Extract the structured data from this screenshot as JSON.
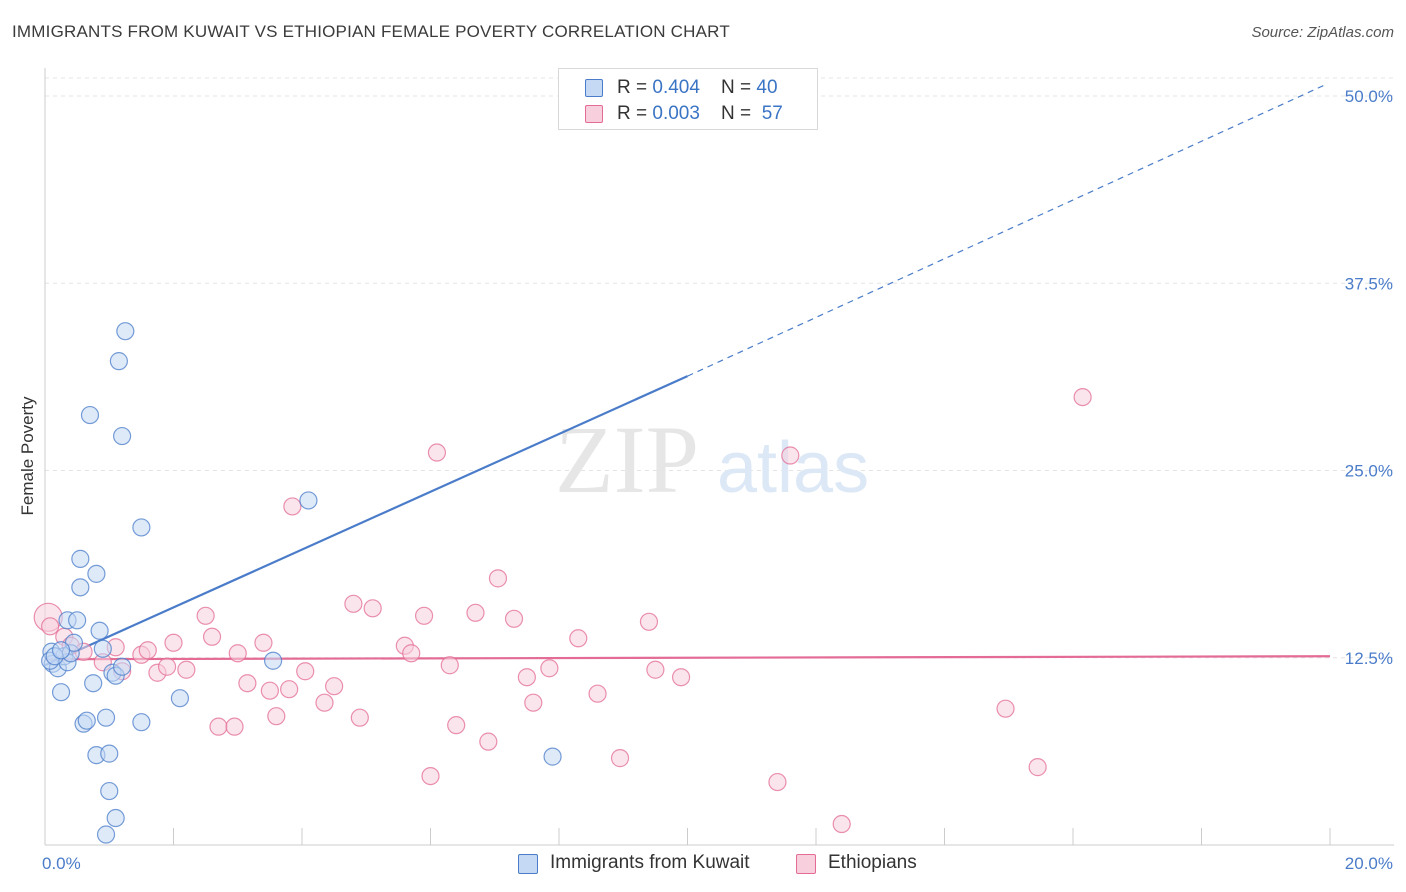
{
  "header": {
    "title": "IMMIGRANTS FROM KUWAIT VS ETHIOPIAN FEMALE POVERTY CORRELATION CHART",
    "source": "Source: ZipAtlas.com"
  },
  "watermark": {
    "zip": "ZIP",
    "atlas": "atlas"
  },
  "legend": {
    "rows": [
      {
        "r_label": "R = ",
        "r_value": "0.404",
        "n_label": "N = ",
        "n_value": "40"
      },
      {
        "r_label": "R = ",
        "r_value": "0.003",
        "n_label": "N = ",
        "n_value": "57"
      }
    ]
  },
  "chart_data": {
    "type": "scatter",
    "title": "IMMIGRANTS FROM KUWAIT VS ETHIOPIAN FEMALE POVERTY CORRELATION CHART",
    "xlabel": "",
    "ylabel": "Female Poverty",
    "xlim": [
      0,
      20
    ],
    "ylim": [
      0,
      50
    ],
    "x_tick_labels": [
      "0.0%",
      "20.0%"
    ],
    "y_ticks": [
      12.5,
      25.0,
      37.5,
      50.0
    ],
    "y_tick_labels": [
      "12.5%",
      "25.0%",
      "37.5%",
      "50.0%"
    ],
    "grid": true,
    "colors": {
      "kuwait": "#4a7cc9",
      "kuwait_fill": "#c5d9f4",
      "ethiopians": "#e36b95",
      "ethiopians_fill": "#f8cfdd"
    },
    "series": [
      {
        "name": "Immigrants from Kuwait",
        "points": [
          [
            0.1,
            12.9
          ],
          [
            0.12,
            12.1
          ],
          [
            0.2,
            11.8
          ],
          [
            0.25,
            10.2
          ],
          [
            0.3,
            12.6
          ],
          [
            0.35,
            12.2
          ],
          [
            0.4,
            12.8
          ],
          [
            0.35,
            15.0
          ],
          [
            0.5,
            15.0
          ],
          [
            0.45,
            13.5
          ],
          [
            0.55,
            17.2
          ],
          [
            0.55,
            19.1
          ],
          [
            0.7,
            28.7
          ],
          [
            0.8,
            18.1
          ],
          [
            0.85,
            14.3
          ],
          [
            0.9,
            13.1
          ],
          [
            0.75,
            10.8
          ],
          [
            0.6,
            8.1
          ],
          [
            0.65,
            8.3
          ],
          [
            0.95,
            8.5
          ],
          [
            0.8,
            6.0
          ],
          [
            1.0,
            6.1
          ],
          [
            1.05,
            11.5
          ],
          [
            1.1,
            11.3
          ],
          [
            1.2,
            11.9
          ],
          [
            1.15,
            32.3
          ],
          [
            1.2,
            27.3
          ],
          [
            1.25,
            34.3
          ],
          [
            1.5,
            21.2
          ],
          [
            1.0,
            3.6
          ],
          [
            1.1,
            1.8
          ],
          [
            0.95,
            0.7
          ],
          [
            1.5,
            8.2
          ],
          [
            2.1,
            9.8
          ],
          [
            3.55,
            12.3
          ],
          [
            4.1,
            23.0
          ],
          [
            7.9,
            5.9
          ],
          [
            0.08,
            12.3
          ],
          [
            0.15,
            12.6
          ],
          [
            0.25,
            13.0
          ]
        ]
      },
      {
        "name": "Ethiopians",
        "points": [
          [
            0.05,
            15.2
          ],
          [
            0.3,
            13.9
          ],
          [
            0.4,
            13.3
          ],
          [
            0.6,
            12.9
          ],
          [
            0.9,
            12.2
          ],
          [
            1.1,
            13.2
          ],
          [
            1.2,
            11.6
          ],
          [
            1.5,
            12.7
          ],
          [
            1.6,
            13.0
          ],
          [
            1.75,
            11.5
          ],
          [
            1.9,
            11.9
          ],
          [
            2.0,
            13.5
          ],
          [
            2.2,
            11.7
          ],
          [
            2.5,
            15.3
          ],
          [
            2.6,
            13.9
          ],
          [
            2.7,
            7.9
          ],
          [
            2.95,
            7.9
          ],
          [
            3.0,
            12.8
          ],
          [
            3.15,
            10.8
          ],
          [
            3.4,
            13.5
          ],
          [
            3.5,
            10.3
          ],
          [
            3.6,
            8.6
          ],
          [
            3.8,
            10.4
          ],
          [
            4.05,
            11.6
          ],
          [
            4.35,
            9.5
          ],
          [
            4.5,
            10.6
          ],
          [
            4.8,
            16.1
          ],
          [
            4.9,
            8.5
          ],
          [
            5.1,
            15.8
          ],
          [
            5.6,
            13.3
          ],
          [
            5.7,
            12.8
          ],
          [
            5.9,
            15.3
          ],
          [
            6.0,
            4.6
          ],
          [
            6.1,
            26.2
          ],
          [
            6.3,
            12.0
          ],
          [
            6.4,
            8.0
          ],
          [
            6.7,
            15.5
          ],
          [
            6.9,
            6.9
          ],
          [
            7.05,
            17.8
          ],
          [
            7.3,
            15.1
          ],
          [
            7.5,
            11.2
          ],
          [
            7.6,
            9.5
          ],
          [
            7.85,
            11.8
          ],
          [
            8.3,
            13.8
          ],
          [
            8.6,
            10.1
          ],
          [
            8.95,
            5.8
          ],
          [
            9.4,
            14.9
          ],
          [
            9.5,
            11.7
          ],
          [
            9.9,
            11.2
          ],
          [
            11.4,
            4.2
          ],
          [
            11.6,
            26.0
          ],
          [
            12.4,
            1.4
          ],
          [
            14.95,
            9.1
          ],
          [
            15.45,
            5.2
          ],
          [
            16.15,
            29.9
          ],
          [
            3.85,
            22.6
          ],
          [
            0.08,
            14.6
          ]
        ]
      }
    ],
    "trend_lines": [
      {
        "name": "Immigrants from Kuwait",
        "solid": [
          [
            0.0,
            12.0
          ],
          [
            10.0,
            31.3
          ]
        ],
        "dashed": [
          [
            10.0,
            31.3
          ],
          [
            19.9,
            50.7
          ]
        ]
      },
      {
        "name": "Ethiopians",
        "solid": [
          [
            0.0,
            12.4
          ],
          [
            20.0,
            12.6
          ]
        ]
      }
    ]
  },
  "bottom_legend": {
    "kuwait_label": "Immigrants from Kuwait",
    "ethiopians_label": "Ethiopians"
  }
}
